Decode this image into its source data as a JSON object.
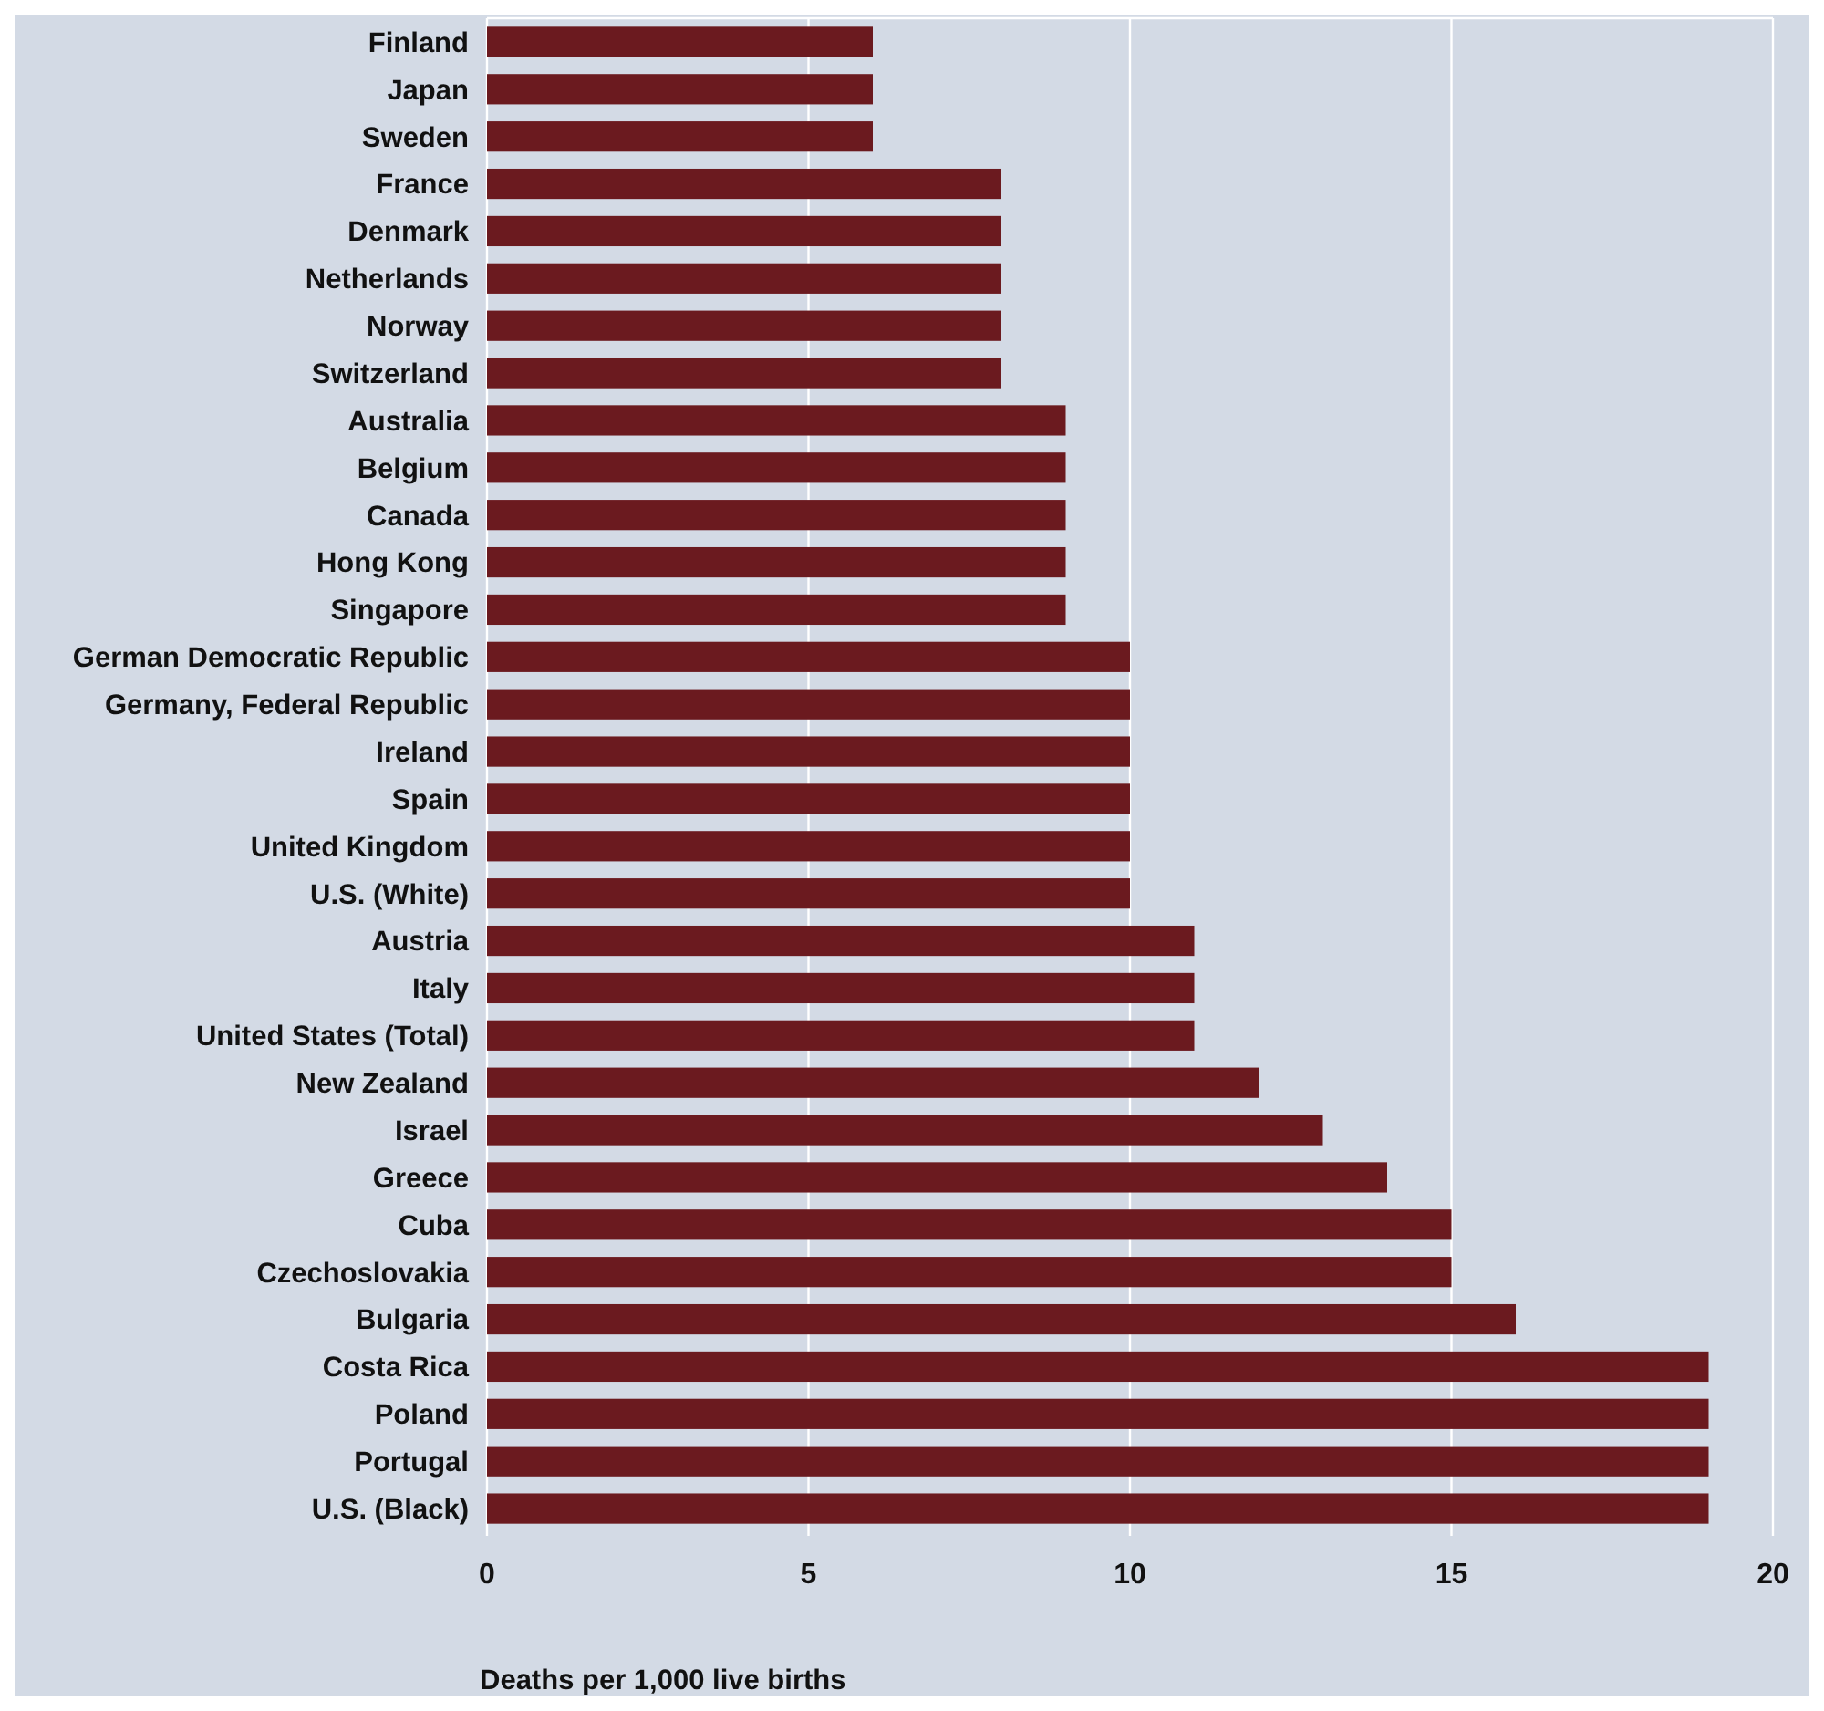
{
  "chart_data": {
    "type": "bar",
    "orientation": "horizontal",
    "xlabel": "Deaths per 1,000 live births",
    "categories": [
      "Finland",
      "Japan",
      "Sweden",
      "France",
      "Denmark",
      "Netherlands",
      "Norway",
      "Switzerland",
      "Australia",
      "Belgium",
      "Canada",
      "Hong Kong",
      "Singapore",
      "German Democratic Republic",
      "Germany, Federal Republic",
      "Ireland",
      "Spain",
      "United Kingdom",
      "U.S. (White)",
      "Austria",
      "Italy",
      "United States (Total)",
      "New Zealand",
      "Israel",
      "Greece",
      "Cuba",
      "Czechoslovakia",
      "Bulgaria",
      "Costa Rica",
      "Poland",
      "Portugal",
      "U.S. (Black)"
    ],
    "values": [
      6,
      6,
      6,
      8,
      8,
      8,
      8,
      8,
      9,
      9,
      9,
      9,
      9,
      10,
      10,
      10,
      10,
      10,
      10,
      11,
      11,
      11,
      12,
      13,
      14,
      15,
      15,
      16,
      19,
      19,
      19,
      19
    ],
    "color": "#6b1a1f",
    "xlim": [
      0,
      20
    ],
    "xticks": [
      0,
      5,
      10,
      15,
      20
    ],
    "grid": "x"
  }
}
